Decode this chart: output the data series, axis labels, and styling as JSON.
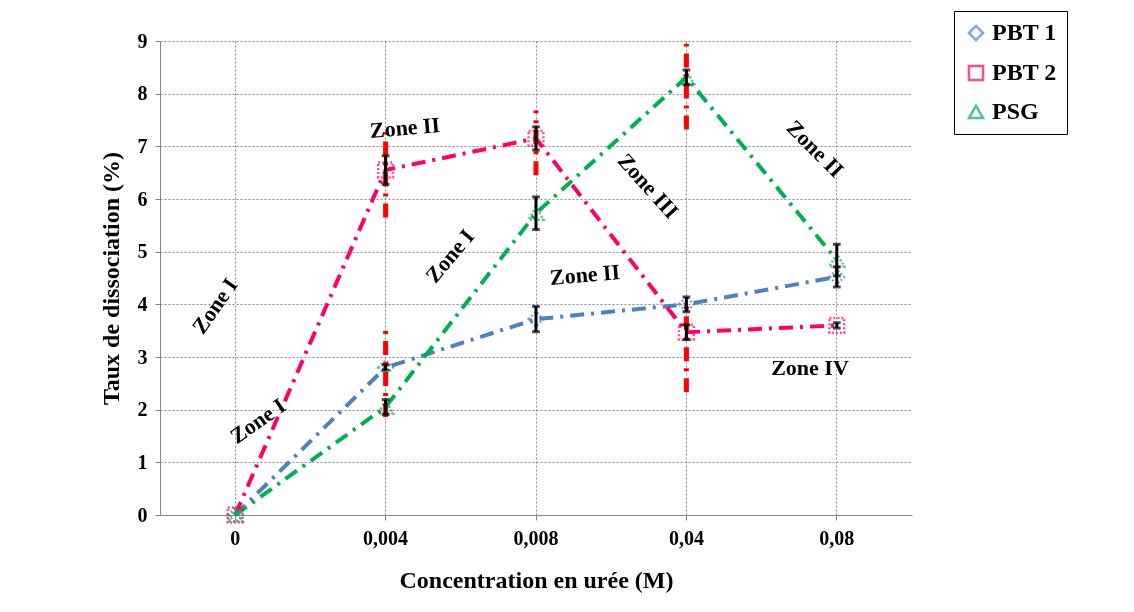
{
  "chart_data": {
    "type": "line",
    "xlabel": "Concentration en urée (M)",
    "ylabel": "Taux de dissociation (%)",
    "categories": [
      "0",
      "0,004",
      "0,008",
      "0,04",
      "0,08"
    ],
    "ylim": [
      0,
      9
    ],
    "yticks": [
      0,
      1,
      2,
      3,
      4,
      5,
      6,
      7,
      8,
      9
    ],
    "grid": true,
    "legend": "top right",
    "line_style": "dashed",
    "series": [
      {
        "name": "PBT 1",
        "color": "#4f81bd",
        "marker": "diamond",
        "values": [
          0,
          2.8,
          3.72,
          4.0,
          4.52
        ],
        "errors": [
          null,
          0.05,
          0.24,
          0.14,
          0.19
        ]
      },
      {
        "name": "PBT 2",
        "color": "#ff0066",
        "marker": "square",
        "values": [
          0,
          6.55,
          7.15,
          3.47,
          3.6
        ],
        "errors": [
          null,
          0.27,
          0.22,
          0.14,
          0.05
        ]
      },
      {
        "name": "PSG",
        "color": "#00b050",
        "marker": "triangle",
        "values": [
          0,
          2.05,
          5.73,
          8.31,
          4.84
        ],
        "errors": [
          null,
          0.14,
          0.31,
          0.14,
          0.3
        ]
      },
      {
        "type": "line",
        "color": "#ff0000",
        "marker": "none",
        "x": [
          "0,004",
          "0,004"
        ],
        "values": [
          1.86,
          3.51
        ]
      },
      {
        "type": "line",
        "color": "#ff0000",
        "marker": "none",
        "x": [
          "0,004",
          "0,004"
        ],
        "values": [
          5.65,
          7.27
        ]
      },
      {
        "type": "line",
        "color": "#ff0000",
        "marker": "none",
        "x": [
          "0,008",
          "0,008"
        ],
        "values": [
          6.45,
          7.68
        ]
      },
      {
        "type": "line",
        "color": "#ff0000",
        "marker": "none",
        "x": [
          "0,04",
          "0,04"
        ],
        "values": [
          7.32,
          8.95
        ]
      },
      {
        "type": "line",
        "color": "#ff0000",
        "marker": "none",
        "x": [
          "0,04",
          "0,04"
        ],
        "values": [
          2.33,
          3.97
        ]
      }
    ],
    "annotations": [
      "Zone I",
      "Zone II",
      "Zone I",
      "Zone I",
      "Zone III",
      "Zone II",
      "Zone II",
      "Zone IV"
    ]
  }
}
